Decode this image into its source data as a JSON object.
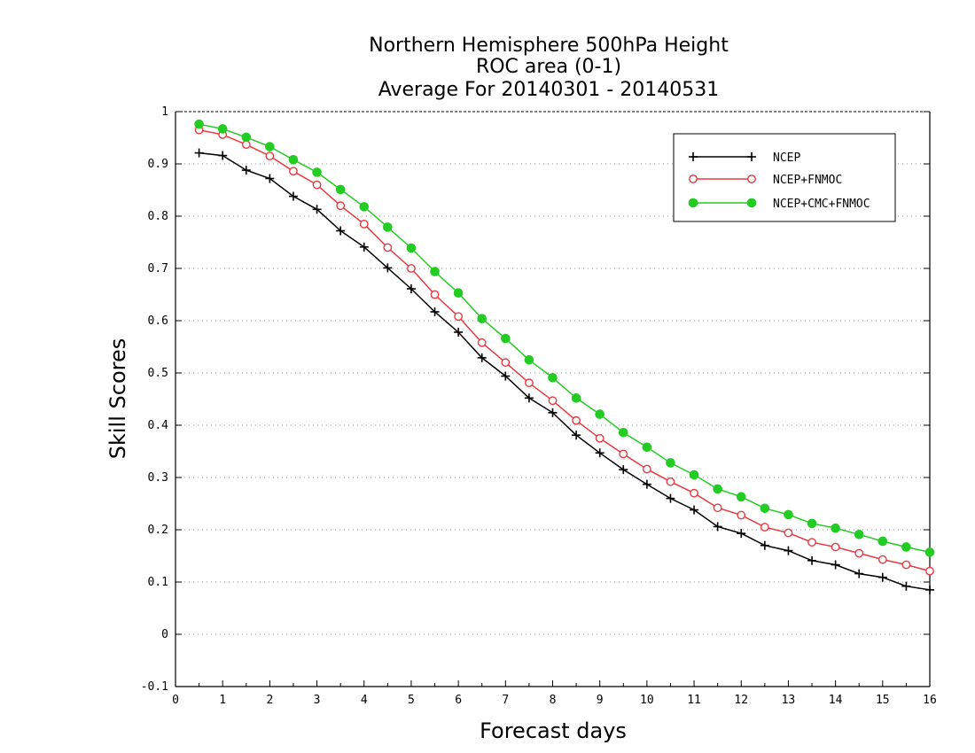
{
  "chart_data": {
    "type": "line",
    "title_lines": [
      "Northern Hemisphere 500hPa Height",
      "ROC area (0-1)",
      "Average For 20140301 - 20140531"
    ],
    "xlabel": "Forecast days",
    "ylabel": "Skill Scores",
    "xlim": [
      0,
      16
    ],
    "ylim": [
      -0.1,
      1
    ],
    "xticks": [
      "0",
      "1",
      "2",
      "3",
      "4",
      "5",
      "6",
      "7",
      "8",
      "9",
      "10",
      "11",
      "12",
      "13",
      "14",
      "15",
      "16"
    ],
    "yticks": [
      "-0.1",
      "0",
      "0.1",
      "0.2",
      "0.3",
      "0.4",
      "0.5",
      "0.6",
      "0.7",
      "0.8",
      "0.9",
      "1"
    ],
    "grid": "horizontal dotted",
    "legend_position": "top-right",
    "x": [
      0.5,
      1,
      1.5,
      2,
      2.5,
      3,
      3.5,
      4,
      4.5,
      5,
      5.5,
      6,
      6.5,
      7,
      7.5,
      8,
      8.5,
      9,
      9.5,
      10,
      10.5,
      11,
      11.5,
      12,
      12.5,
      13,
      13.5,
      14,
      14.5,
      15,
      15.5,
      16
    ],
    "series": [
      {
        "name": "NCEP",
        "color": "#000000",
        "marker": "plus",
        "values": [
          0.921,
          0.916,
          0.888,
          0.872,
          0.838,
          0.813,
          0.772,
          0.741,
          0.701,
          0.661,
          0.617,
          0.578,
          0.529,
          0.494,
          0.452,
          0.424,
          0.381,
          0.347,
          0.315,
          0.287,
          0.26,
          0.238,
          0.206,
          0.193,
          0.17,
          0.16,
          0.141,
          0.133,
          0.116,
          0.109,
          0.092,
          0.085
        ]
      },
      {
        "name": "NCEP+FNMOC",
        "color": "#e8393e",
        "marker": "open-circle",
        "values": [
          0.965,
          0.956,
          0.937,
          0.915,
          0.886,
          0.86,
          0.82,
          0.785,
          0.74,
          0.7,
          0.65,
          0.608,
          0.558,
          0.52,
          0.481,
          0.447,
          0.409,
          0.375,
          0.345,
          0.316,
          0.292,
          0.27,
          0.242,
          0.228,
          0.205,
          0.194,
          0.176,
          0.167,
          0.155,
          0.143,
          0.133,
          0.121
        ]
      },
      {
        "name": "NCEP+CMC+FNMOC",
        "color": "#22cc22",
        "marker": "filled-circle",
        "values": [
          0.976,
          0.967,
          0.951,
          0.933,
          0.908,
          0.884,
          0.851,
          0.818,
          0.779,
          0.739,
          0.694,
          0.653,
          0.604,
          0.566,
          0.525,
          0.491,
          0.452,
          0.421,
          0.386,
          0.358,
          0.328,
          0.305,
          0.278,
          0.263,
          0.241,
          0.229,
          0.212,
          0.203,
          0.191,
          0.178,
          0.167,
          0.157
        ]
      }
    ]
  }
}
